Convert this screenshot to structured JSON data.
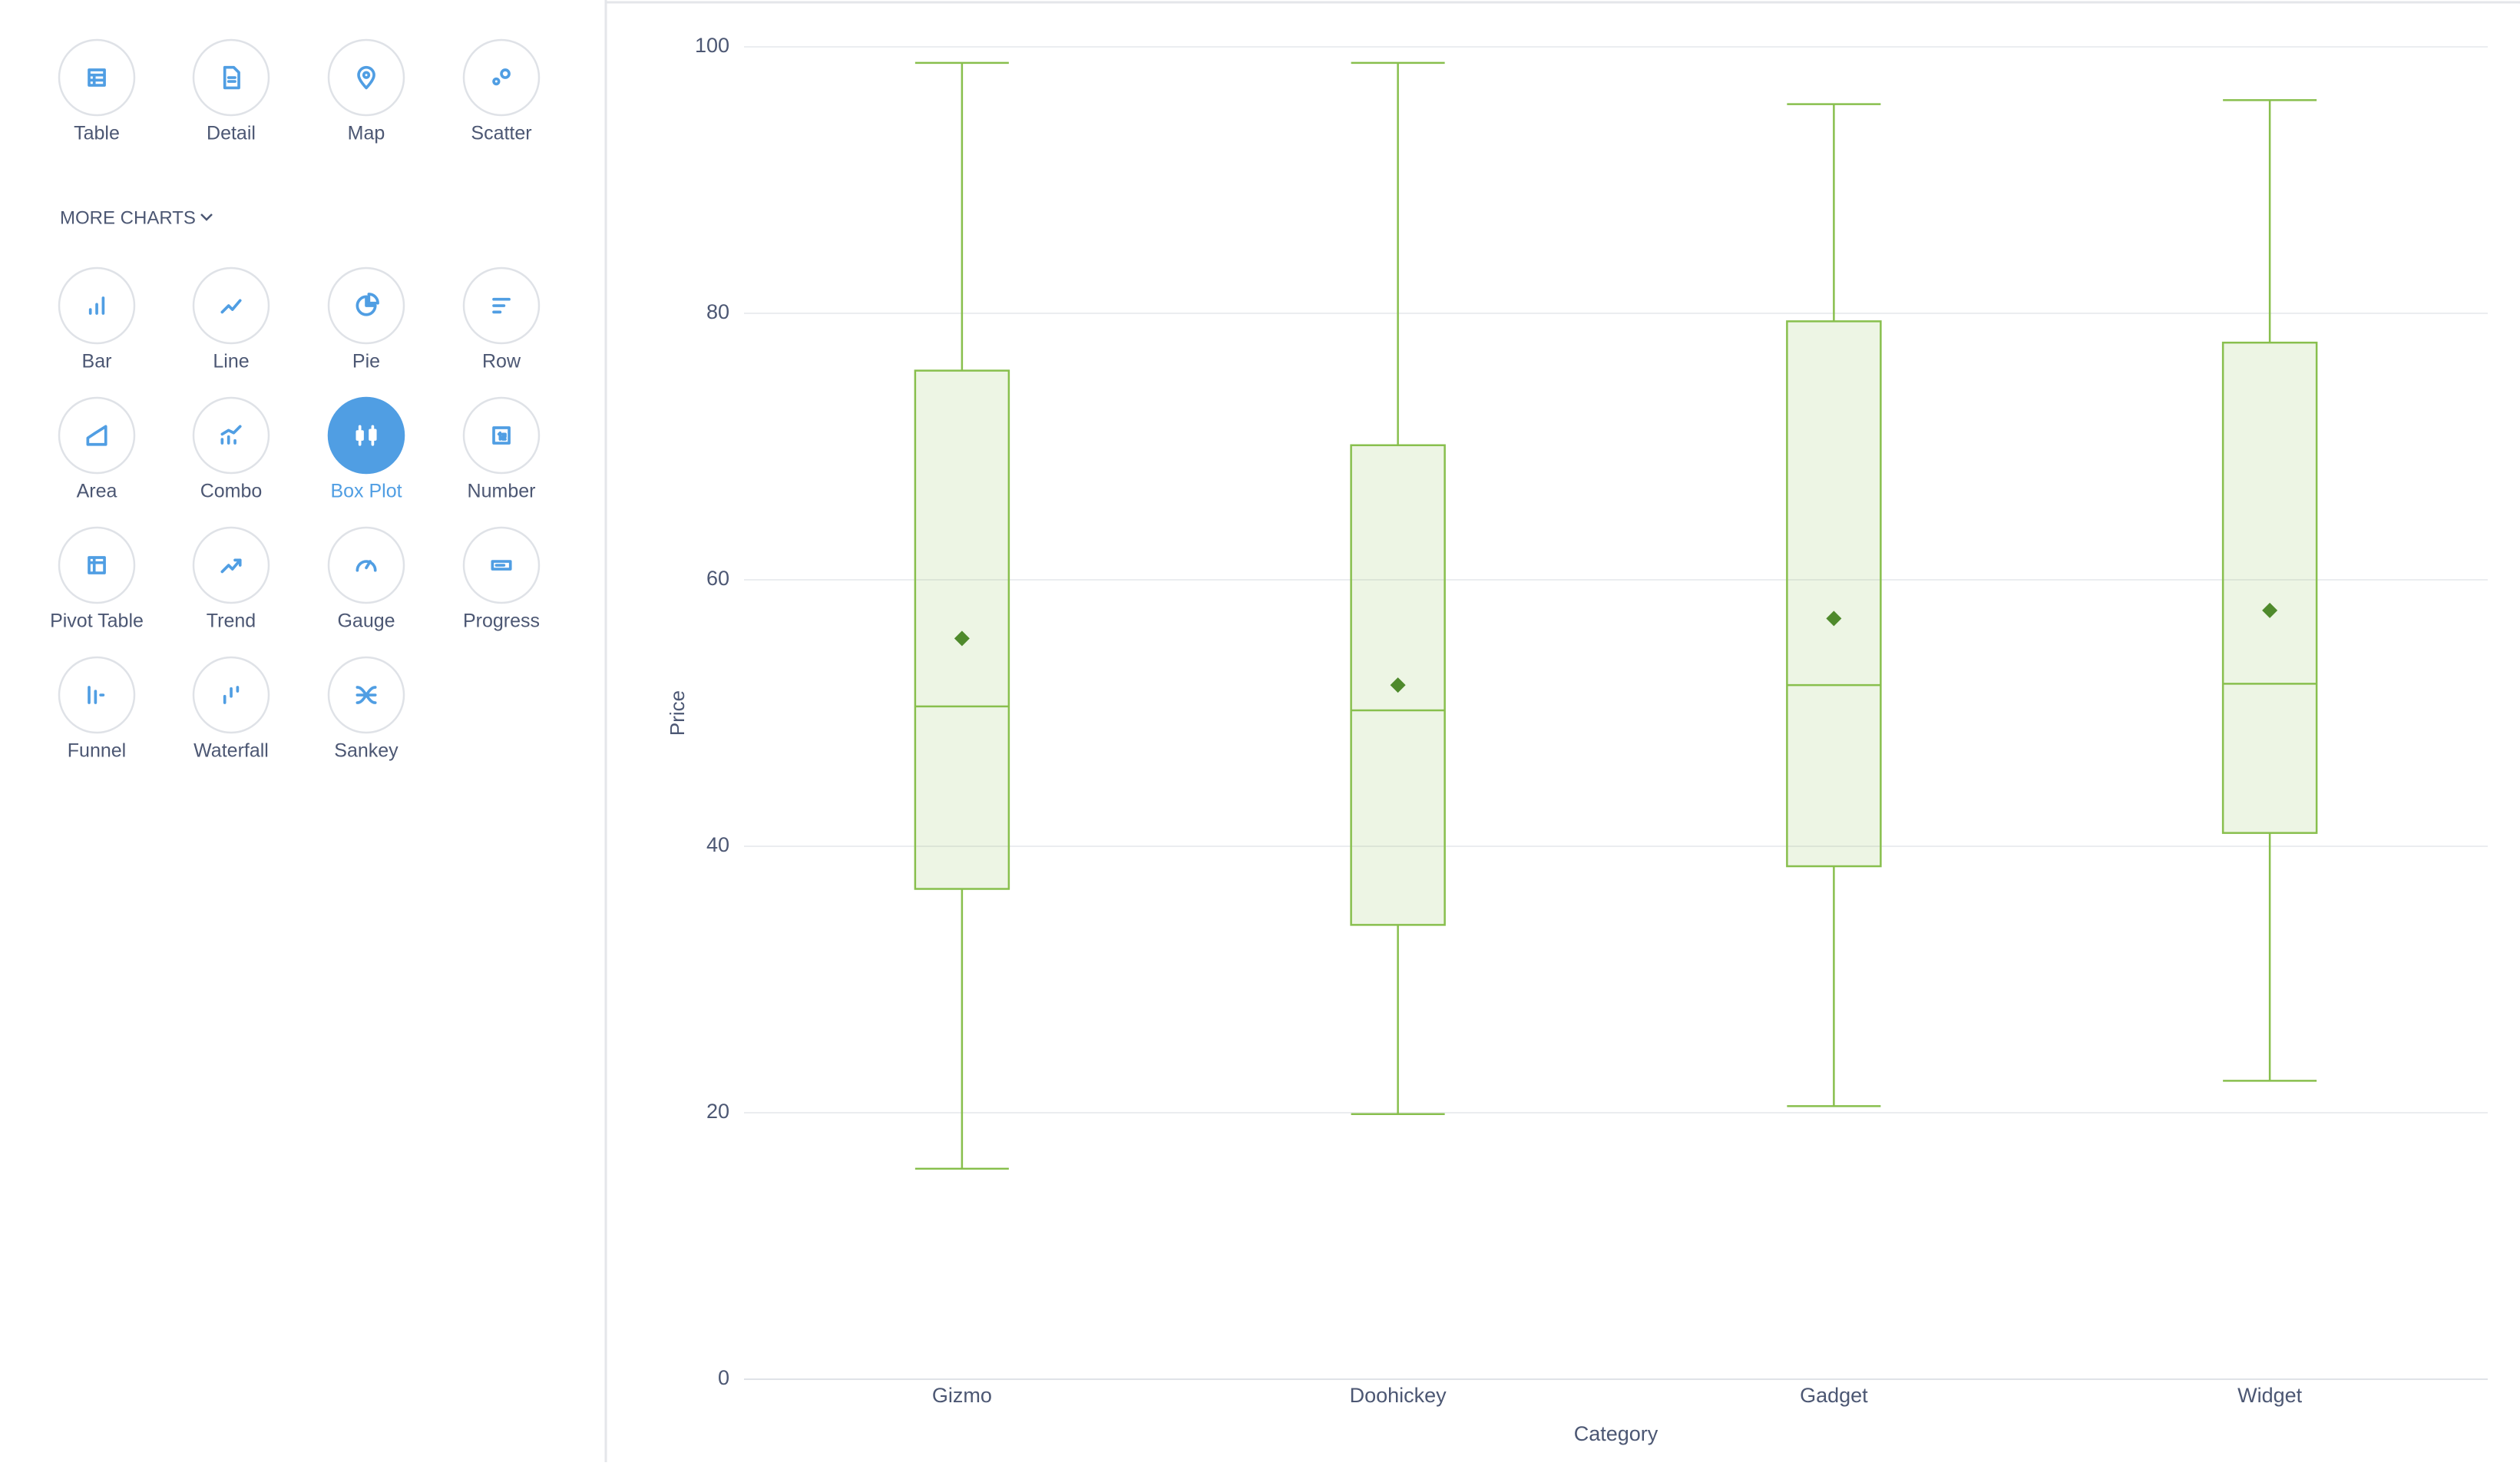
{
  "sidebar": {
    "items": [
      "Table",
      "Detail",
      "Map",
      "Scatter"
    ],
    "more_charts": "MORE CHARTS",
    "more_items": [
      "Bar",
      "Line",
      "Pie",
      "Row",
      "Area",
      "Combo",
      "Box Plot",
      "Number",
      "Pivot Table",
      "Trend",
      "Gauge",
      "Progress",
      "Funnel",
      "Waterfall",
      "Sankey"
    ],
    "active": "Box Plot"
  },
  "chart_data": {
    "type": "boxplot",
    "x_label": "Category",
    "y_label": "Price",
    "categories": [
      "Gizmo",
      "Doohickey",
      "Gadget",
      "Widget"
    ],
    "min": [
      15.8,
      19.9,
      20.5,
      22.4
    ],
    "q1": [
      36.8,
      34.1,
      38.5,
      41.0
    ],
    "median": [
      50.5,
      50.2,
      52.1,
      52.2
    ],
    "q3": [
      75.7,
      70.1,
      79.4,
      77.8
    ],
    "max": [
      98.8,
      98.8,
      95.7,
      96.0
    ],
    "mean": [
      55.6,
      52.1,
      57.1,
      57.7
    ],
    "color": "#88bf4d",
    "mean_color": "#4f8a2c",
    "ylim": [
      0,
      100
    ],
    "yticks": [
      0,
      20,
      40,
      60,
      80,
      100
    ],
    "grid": true
  }
}
